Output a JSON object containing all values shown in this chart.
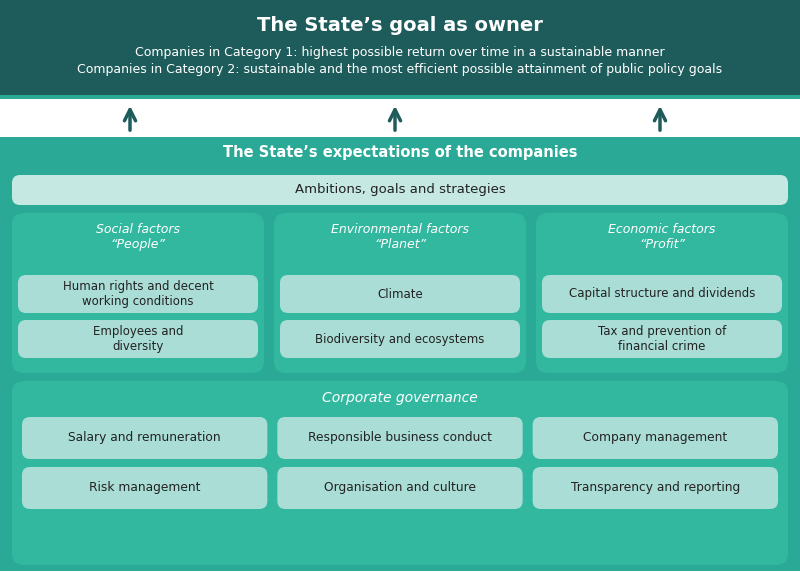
{
  "title": "The State’s goal as owner",
  "subtitle1": "Companies in Category 1: highest possible return over time in a sustainable manner",
  "subtitle2": "Companies in Category 2: sustainable and the most efficient possible attainment of public policy goals",
  "header_bg": "#1e5c5c",
  "teal_mid": "#2aaa96",
  "teal_col_bg": "#33b8a0",
  "teal_lightest": "#aaddd6",
  "teal_ambitions": "#c5e8e3",
  "white": "#ffffff",
  "arrow_color": "#1e5c5c",
  "expectations_label": "The State’s expectations of the companies",
  "ambitions_label": "Ambitions, goals and strategies",
  "col1_header": "Social factors\n“People”",
  "col2_header": "Environmental factors\n“Planet”",
  "col3_header": "Economic factors\n“Profit”",
  "col1_items": [
    "Human rights and decent\nworking conditions",
    "Employees and\ndiversity"
  ],
  "col2_items": [
    "Climate",
    "Biodiversity and ecosystems"
  ],
  "col3_items": [
    "Capital structure and dividends",
    "Tax and prevention of\nfinancial crime"
  ],
  "gov_header": "Corporate governance",
  "gov_row1": [
    "Salary and remuneration",
    "Responsible business conduct",
    "Company management"
  ],
  "gov_row2": [
    "Risk management",
    "Organisation and culture",
    "Transparency and reporting"
  ],
  "text_dark": "#222222",
  "fig_w": 8.0,
  "fig_h": 5.73,
  "dpi": 100
}
